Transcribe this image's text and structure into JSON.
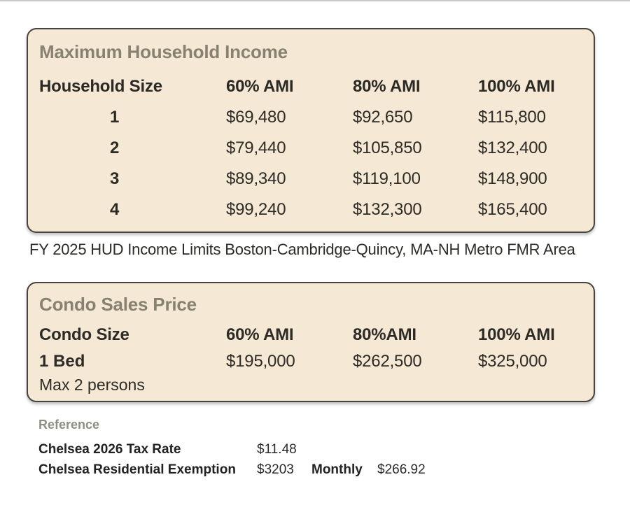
{
  "colors": {
    "page_bg": "#ffffff",
    "panel_bg": "#f5e9d6",
    "panel_border": "#45433b",
    "panel_title": "#87826f",
    "body_text": "#2d2b25",
    "reference_title": "#8f8d84"
  },
  "income_panel": {
    "title": "Maximum Household Income",
    "columns": [
      "Household Size",
      "60% AMI",
      "80% AMI",
      "100% AMI"
    ],
    "rows": [
      [
        "1",
        "$69,480",
        "$92,650",
        "$115,800"
      ],
      [
        "2",
        "$79,440",
        "$105,850",
        "$132,400"
      ],
      [
        "3",
        "$89,340",
        "$119,100",
        "$148,900"
      ],
      [
        "4",
        "$99,240",
        "$132,300",
        "$165,400"
      ]
    ]
  },
  "caption": "FY 2025 HUD Income Limits Boston-Cambridge-Quincy, MA-NH Metro FMR Area",
  "condo_panel": {
    "title": "Condo Sales Price",
    "columns": [
      "Condo Size",
      "60% AMI",
      "80%AMI",
      "100% AMI"
    ],
    "row": {
      "size": "1 Bed",
      "note": "Max 2 persons",
      "values": [
        "$195,000",
        "$262,500",
        "$325,000"
      ]
    }
  },
  "reference": {
    "title": "Reference",
    "rows": [
      {
        "label": "Chelsea 2026 Tax Rate",
        "value": "$11.48",
        "extra_label": "",
        "extra_value": ""
      },
      {
        "label": "Chelsea Residential Exemption",
        "value": "$3203",
        "extra_label": "Monthly",
        "extra_value": "$266.92"
      }
    ]
  }
}
